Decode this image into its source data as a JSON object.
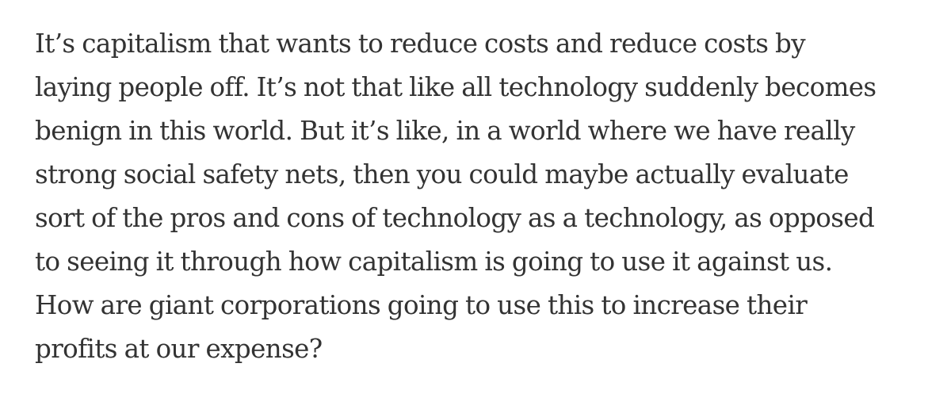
{
  "article": {
    "paragraph_lines": [
      "It’s capitalism that wants to reduce costs and reduce costs by",
      "laying people off. It’s not that like all technology suddenly becomes",
      "benign in this world. But it’s like, in a world where we have really",
      "strong social safety nets, then you could maybe actually evaluate",
      "sort of the pros and cons of technology as a technology, as opposed",
      "to seeing it through how capitalism is going to use it against us.",
      "How are giant corporations going to use this to increase their",
      "profits at our expense?"
    ]
  },
  "colors": {
    "text": "#333333",
    "background": "#ffffff"
  }
}
